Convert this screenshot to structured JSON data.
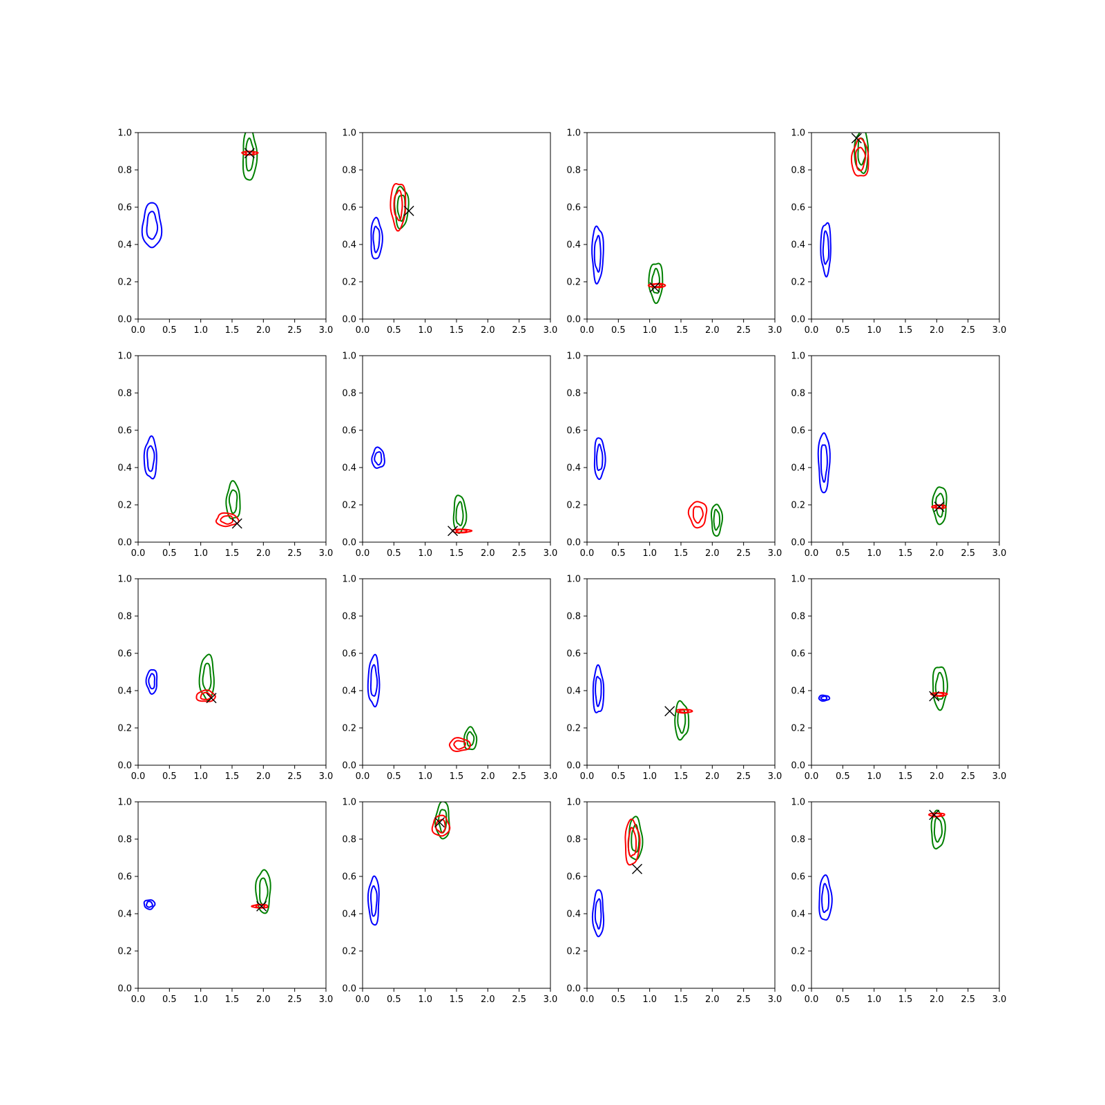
{
  "colors": {
    "blue": "#0000ff",
    "green": "#008000",
    "red": "#ff0000",
    "marker": "#000000"
  },
  "chart_data": {
    "type": "contour",
    "grid": false,
    "layout": "4x4 grid",
    "xlim": [
      0,
      3
    ],
    "ylim": [
      0,
      1
    ],
    "x_ticks": [
      "0.0",
      "0.5",
      "1.0",
      "1.5",
      "2.0",
      "2.5",
      "3.0"
    ],
    "y_ticks": [
      "0.0",
      "0.2",
      "0.4",
      "0.6",
      "0.8",
      "1.0"
    ],
    "panels": [
      {
        "blue": [
          0.22,
          0.5,
          0.3,
          0.24
        ],
        "green": [
          1.78,
          0.88,
          0.22,
          0.28
        ],
        "red": [
          1.78,
          0.89,
          0.25,
          0.012
        ],
        "marker": [
          1.78,
          0.89
        ]
      },
      {
        "blue": [
          0.22,
          0.43,
          0.18,
          0.22
        ],
        "green": [
          0.62,
          0.6,
          0.22,
          0.22
        ],
        "red": [
          0.57,
          0.61,
          0.24,
          0.25
        ],
        "marker": [
          0.74,
          0.58
        ]
      },
      {
        "blue": [
          0.17,
          0.35,
          0.18,
          0.3
        ],
        "green": [
          1.1,
          0.2,
          0.22,
          0.21
        ],
        "red": [
          1.12,
          0.18,
          0.27,
          0.02
        ],
        "marker": [
          1.08,
          0.17
        ]
      },
      {
        "blue": [
          0.23,
          0.38,
          0.16,
          0.28
        ],
        "green": [
          0.8,
          0.9,
          0.22,
          0.23
        ],
        "red": [
          0.78,
          0.86,
          0.27,
          0.2
        ],
        "marker": [
          0.72,
          0.97
        ]
      },
      {
        "blue": [
          0.2,
          0.45,
          0.2,
          0.22
        ],
        "green": [
          1.52,
          0.22,
          0.22,
          0.2
        ],
        "red": [
          1.42,
          0.12,
          0.35,
          0.07
        ],
        "marker": [
          1.58,
          0.1
        ]
      },
      {
        "blue": [
          0.25,
          0.45,
          0.2,
          0.11
        ],
        "green": [
          1.55,
          0.15,
          0.2,
          0.2
        ],
        "red": [
          1.58,
          0.06,
          0.3,
          0.01
        ],
        "marker": [
          1.44,
          0.06
        ]
      },
      {
        "blue": [
          0.2,
          0.45,
          0.17,
          0.22
        ],
        "green": [
          2.07,
          0.12,
          0.17,
          0.17
        ],
        "red": [
          1.77,
          0.15,
          0.28,
          0.14
        ],
        "marker": null
      },
      {
        "blue": [
          0.2,
          0.43,
          0.18,
          0.32
        ],
        "green": [
          2.05,
          0.2,
          0.22,
          0.2
        ],
        "red": [
          2.04,
          0.19,
          0.22,
          0.01
        ],
        "marker": [
          2.04,
          0.19
        ]
      },
      {
        "blue": [
          0.22,
          0.45,
          0.17,
          0.13
        ],
        "green": [
          1.1,
          0.47,
          0.23,
          0.24
        ],
        "red": [
          1.08,
          0.37,
          0.3,
          0.06
        ],
        "marker": [
          1.17,
          0.36
        ]
      },
      {
        "blue": [
          0.18,
          0.45,
          0.18,
          0.27
        ],
        "green": [
          1.72,
          0.14,
          0.2,
          0.12
        ],
        "red": [
          1.55,
          0.11,
          0.33,
          0.07
        ],
        "marker": null
      },
      {
        "blue": [
          0.18,
          0.4,
          0.17,
          0.25
        ],
        "green": [
          1.51,
          0.24,
          0.22,
          0.2
        ],
        "red": [
          1.55,
          0.29,
          0.25,
          0.015
        ],
        "marker": [
          1.32,
          0.29
        ]
      },
      {
        "blue": [
          0.2,
          0.36,
          0.17,
          0.03
        ],
        "green": [
          2.05,
          0.42,
          0.23,
          0.23
        ],
        "red": [
          2.04,
          0.38,
          0.25,
          0.012
        ],
        "marker": [
          1.96,
          0.37
        ]
      },
      {
        "blue": [
          0.18,
          0.45,
          0.17,
          0.05
        ],
        "green": [
          2.0,
          0.52,
          0.23,
          0.23
        ],
        "red": [
          1.95,
          0.44,
          0.25,
          0.012
        ],
        "marker": [
          1.97,
          0.44
        ]
      },
      {
        "blue": [
          0.18,
          0.47,
          0.17,
          0.26
        ],
        "green": [
          1.28,
          0.9,
          0.22,
          0.2
        ],
        "red": [
          1.25,
          0.87,
          0.27,
          0.11
        ],
        "marker": [
          1.23,
          0.89
        ]
      },
      {
        "blue": [
          0.18,
          0.4,
          0.17,
          0.25
        ],
        "green": [
          0.77,
          0.8,
          0.22,
          0.23
        ],
        "red": [
          0.72,
          0.78,
          0.23,
          0.24
        ],
        "marker": [
          0.8,
          0.64
        ]
      },
      {
        "blue": [
          0.22,
          0.48,
          0.2,
          0.24
        ],
        "green": [
          2.02,
          0.85,
          0.22,
          0.2
        ],
        "red": [
          2.0,
          0.93,
          0.25,
          0.012
        ],
        "marker": [
          1.96,
          0.93
        ]
      }
    ]
  }
}
